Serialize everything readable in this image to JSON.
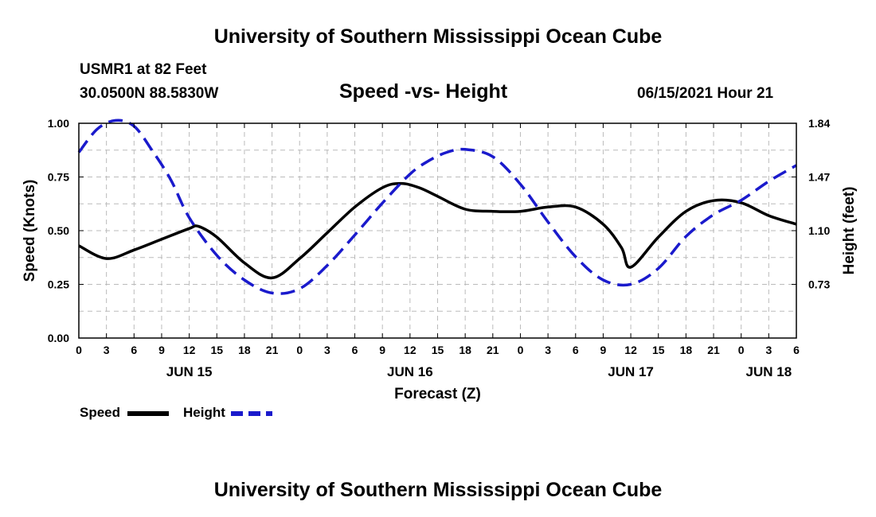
{
  "header": {
    "title": "University of Southern Mississippi Ocean Cube",
    "station_line": "USMR1 at 82 Feet",
    "coords_line": "30.0500N  88.5830W",
    "subtitle": "Speed -vs- Height",
    "timestamp": "06/15/2021 Hour 21"
  },
  "footer": {
    "title": "University of Southern Mississippi Ocean Cube"
  },
  "legend": {
    "speed_label": "Speed",
    "height_label": "Height",
    "speed_color": "#000000",
    "height_color": "#1a1acc"
  },
  "chart_data": {
    "type": "line",
    "title": "Speed -vs- Height",
    "xlabel": "Forecast (Z)",
    "ylabel": "Speed (Knots)",
    "y2label": "Height (feet)",
    "x_range_hours": [
      0,
      78
    ],
    "x_tick_labels": [
      "0",
      "3",
      "6",
      "9",
      "12",
      "15",
      "18",
      "21",
      "0",
      "3",
      "6",
      "9",
      "12",
      "15",
      "18",
      "21",
      "0",
      "3",
      "6",
      "9",
      "12",
      "15",
      "18",
      "21",
      "0",
      "3",
      "6"
    ],
    "day_labels": [
      {
        "label": "JUN 15",
        "hour": 12
      },
      {
        "label": "JUN 16",
        "hour": 36
      },
      {
        "label": "JUN 17",
        "hour": 60
      },
      {
        "label": "JUN 18",
        "hour": 75
      }
    ],
    "ylim": [
      0,
      1.0
    ],
    "y_ticks": [
      0.0,
      0.25,
      0.5,
      0.75,
      1.0
    ],
    "y_tick_labels": [
      "0.00",
      "0.25",
      "0.50",
      "0.75",
      "1.00"
    ],
    "y2lim": [
      0.36,
      1.84
    ],
    "y2_ticks": [
      0.73,
      1.1,
      1.47,
      1.84
    ],
    "y2_tick_labels": [
      "0.73",
      "1.10",
      "1.47",
      "1.84"
    ],
    "grid": true,
    "series": [
      {
        "name": "Speed",
        "axis": "left",
        "style": "solid",
        "color": "#000000",
        "x": [
          0,
          3,
          6,
          9,
          12,
          13,
          15,
          18,
          21,
          24,
          27,
          30,
          33,
          35,
          37,
          39,
          42,
          45,
          48,
          51,
          54,
          57,
          59,
          60,
          63,
          66,
          69,
          72,
          75,
          78
        ],
        "y": [
          0.43,
          0.37,
          0.41,
          0.46,
          0.51,
          0.52,
          0.47,
          0.35,
          0.28,
          0.37,
          0.49,
          0.61,
          0.7,
          0.72,
          0.7,
          0.66,
          0.6,
          0.59,
          0.59,
          0.61,
          0.61,
          0.53,
          0.42,
          0.33,
          0.47,
          0.59,
          0.64,
          0.63,
          0.57,
          0.53
        ]
      },
      {
        "name": "Height",
        "axis": "right",
        "style": "dashed",
        "color": "#1a1acc",
        "x": [
          0,
          2,
          4,
          6,
          8,
          10,
          12,
          15,
          18,
          21,
          24,
          27,
          30,
          33,
          36,
          38,
          40,
          42,
          45,
          48,
          51,
          54,
          57,
          60,
          63,
          66,
          69,
          72,
          75,
          78
        ],
        "y": [
          1.64,
          1.8,
          1.86,
          1.82,
          1.65,
          1.45,
          1.19,
          0.93,
          0.76,
          0.67,
          0.7,
          0.86,
          1.07,
          1.29,
          1.49,
          1.58,
          1.64,
          1.66,
          1.61,
          1.42,
          1.16,
          0.92,
          0.76,
          0.73,
          0.84,
          1.06,
          1.21,
          1.31,
          1.44,
          1.55
        ]
      }
    ]
  }
}
